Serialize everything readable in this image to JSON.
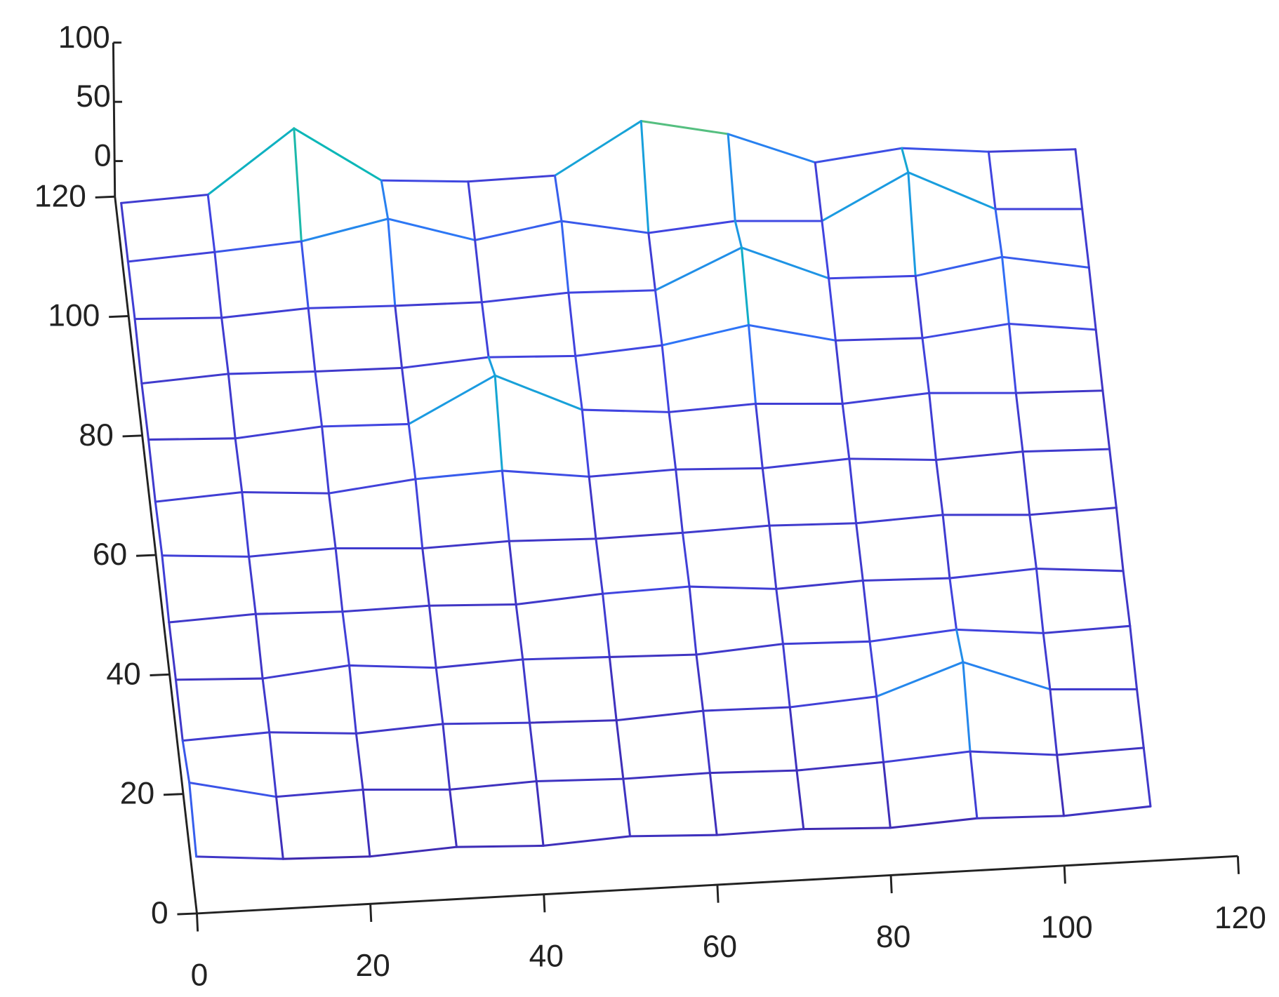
{
  "chart_data": {
    "type": "mesh",
    "x": [
      0,
      10,
      20,
      30,
      40,
      50,
      60,
      70,
      80,
      90,
      100,
      110
    ],
    "y": [
      0,
      10,
      20,
      30,
      40,
      50,
      60,
      70,
      80,
      90,
      100,
      110
    ],
    "z": [
      [
        18,
        12,
        10,
        14,
        11,
        15,
        12,
        13,
        10,
        14,
        12,
        16
      ],
      [
        30,
        14,
        16,
        12,
        15,
        13,
        14,
        12,
        15,
        20,
        13,
        15
      ],
      [
        15,
        18,
        13,
        17,
        14,
        12,
        16,
        15,
        20,
        45,
        18,
        14
      ],
      [
        16,
        13,
        20,
        14,
        17,
        15,
        13,
        18,
        16,
        22,
        15,
        17
      ],
      [
        14,
        17,
        15,
        16,
        13,
        18,
        20,
        14,
        17,
        15,
        19,
        13
      ],
      [
        20,
        15,
        18,
        14,
        16,
        14,
        15,
        17,
        15,
        18,
        14,
        16
      ],
      [
        15,
        19,
        14,
        22,
        25,
        16,
        18,
        15,
        19,
        14,
        17,
        15
      ],
      [
        17,
        14,
        20,
        18,
        55,
        22,
        16,
        19,
        15,
        20,
        16,
        14
      ],
      [
        14,
        18,
        16,
        15,
        20,
        17,
        22,
        35,
        18,
        16,
        24,
        15
      ],
      [
        18,
        15,
        19,
        17,
        16,
        20,
        18,
        50,
        20,
        18,
        30,
        17
      ],
      [
        16,
        20,
        25,
        40,
        18,
        30,
        16,
        22,
        18,
        55,
        20,
        16
      ],
      [
        15,
        18,
        70,
        22,
        17,
        18,
        60,
        45,
        17,
        25,
        18,
        16
      ]
    ],
    "xlim": [
      0,
      120
    ],
    "ylim": [
      0,
      120
    ],
    "zlim": [
      -30,
      100
    ],
    "xticks": [
      0,
      20,
      40,
      60,
      80,
      100,
      120
    ],
    "yticks": [
      0,
      20,
      40,
      60,
      80,
      100,
      120
    ],
    "zticks": [
      0,
      50,
      100
    ],
    "colormap": "parula"
  }
}
